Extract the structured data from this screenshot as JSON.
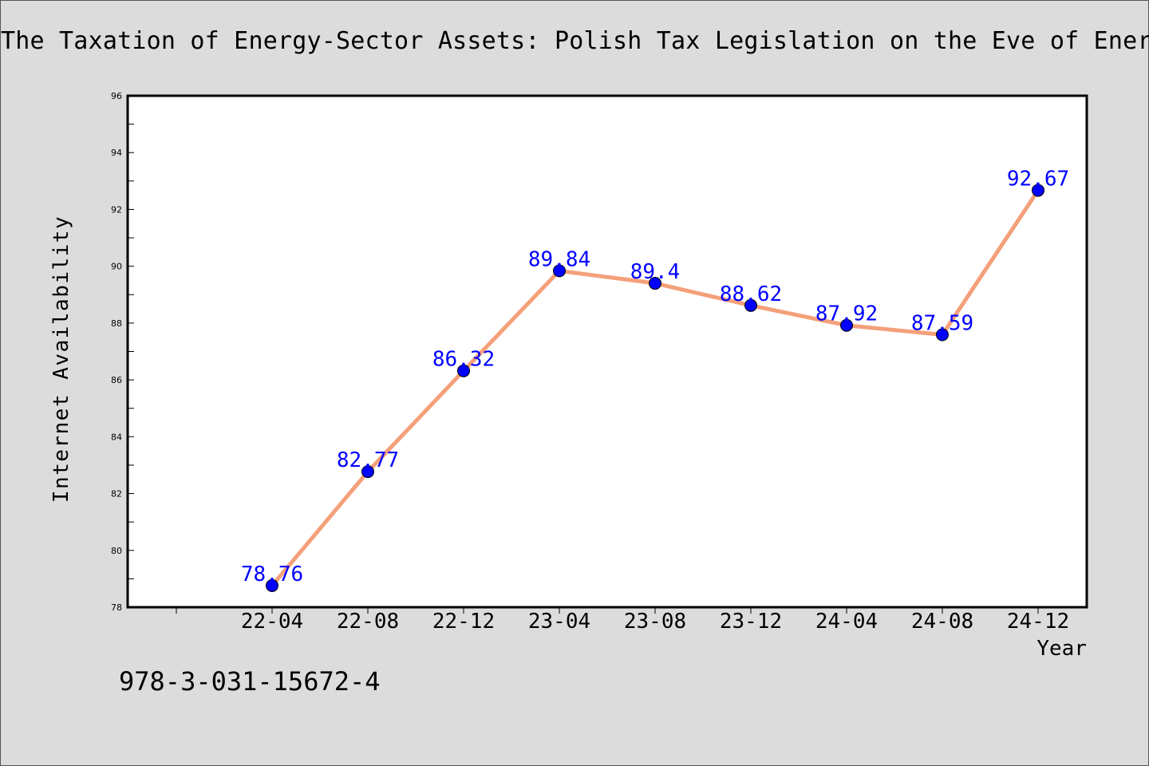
{
  "title": "The Taxation of Energy-Sector Assets: Polish Tax Legislation on the Eve of Energ",
  "footer_text": "978-3-031-15672-4",
  "colors": {
    "background": "#dcdcdc",
    "plot_background": "#ffffff",
    "line": "#f4a07a",
    "marker": "#0000ff",
    "data_label": "#0000ff"
  },
  "chart_data": {
    "type": "line",
    "title": "The Taxation of Energy-Sector Assets: Polish Tax Legislation on the Eve of Energ",
    "xlabel": "Year",
    "ylabel": "Internet Availability",
    "categories": [
      "22-04",
      "22-08",
      "22-12",
      "23-04",
      "23-08",
      "23-12",
      "24-04",
      "24-08",
      "24-12"
    ],
    "series": [
      {
        "values": [
          78.76,
          82.77,
          86.32,
          89.84,
          89.4,
          88.62,
          87.92,
          87.59,
          92.67
        ]
      }
    ],
    "data_labels": [
      "78.76",
      "82.77",
      "86.32",
      "89.84",
      "89.4",
      "88.62",
      "87.92",
      "87.59",
      "92.67"
    ],
    "ylim": [
      78,
      96
    ],
    "yticks": [
      78,
      80,
      82,
      84,
      86,
      88,
      90,
      92,
      94,
      96
    ],
    "grid": false,
    "legend": "none"
  }
}
